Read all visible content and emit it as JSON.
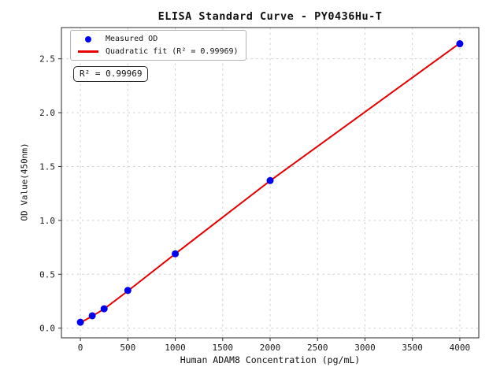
{
  "figure": {
    "background": "#ffffff"
  },
  "chart_data": {
    "type": "scatter",
    "title": "ELISA Standard Curve - PY0436Hu-T",
    "xlabel": "Human ADAM8 Concentration (pg/mL)",
    "ylabel": "OD Value(450nm)",
    "xlim": [
      -200,
      4200
    ],
    "ylim": [
      -0.09,
      2.79
    ],
    "xticks": [
      0,
      500,
      1000,
      1500,
      2000,
      2500,
      3000,
      3500,
      4000
    ],
    "xtick_labels": [
      "0",
      "500",
      "1000",
      "1500",
      "2000",
      "2500",
      "3000",
      "3500",
      "4000"
    ],
    "yticks": [
      0.0,
      0.5,
      1.0,
      1.5,
      2.0,
      2.5
    ],
    "ytick_labels": [
      "0.0",
      "0.5",
      "1.0",
      "1.5",
      "2.0",
      "2.5"
    ],
    "grid": true,
    "grid_color": "#d0d0d0",
    "spine_color": "#2a2a2a",
    "series": [
      {
        "name": "Measured OD",
        "type": "scatter",
        "color": "#0000ee",
        "x": [
          0,
          125,
          250,
          500,
          1000,
          2000,
          4000
        ],
        "y": [
          0.055,
          0.115,
          0.18,
          0.35,
          0.69,
          1.37,
          2.64
        ]
      },
      {
        "name": "Quadratic fit (R² = 0.99969)",
        "type": "line",
        "color": "#e60000",
        "x": [
          0,
          125,
          250,
          500,
          1000,
          2000,
          4000
        ],
        "y": [
          0.05,
          0.112,
          0.178,
          0.345,
          0.69,
          1.368,
          2.645
        ]
      }
    ],
    "legend": {
      "position": "upper left",
      "items": [
        {
          "label": "Measured OD",
          "marker": "dot",
          "color": "#0000ee"
        },
        {
          "label": "Quadratic fit (R² = 0.99969)",
          "marker": "line",
          "color": "#e60000"
        }
      ]
    },
    "annotation": {
      "text": "R² = 0.99969"
    }
  }
}
